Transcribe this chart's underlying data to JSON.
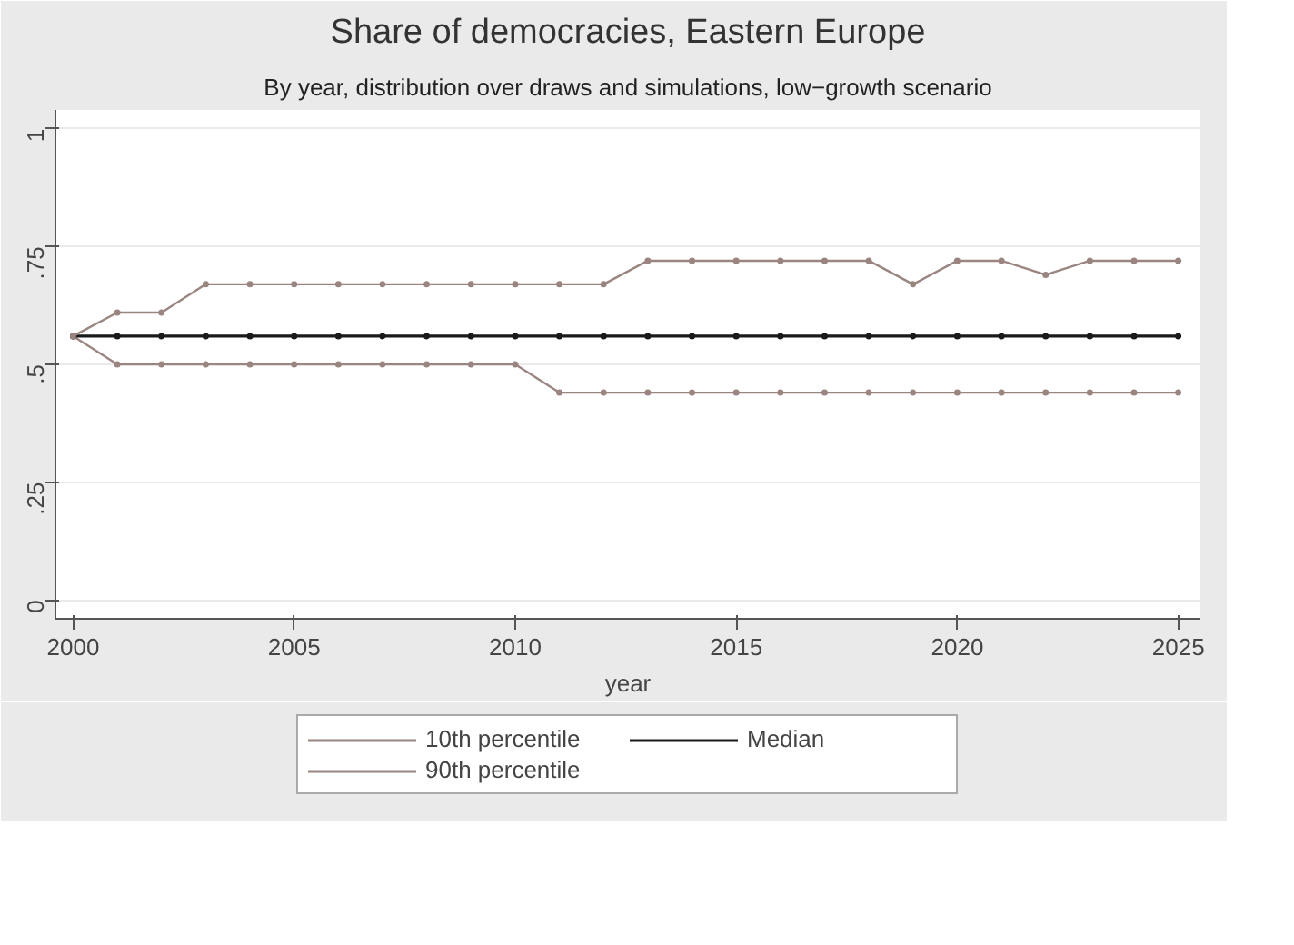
{
  "chart_data": {
    "type": "line",
    "title": "Share of democracies, Eastern Europe",
    "subtitle": "By year, distribution over draws and simulations, low−growth scenario",
    "xlabel": "year",
    "x": [
      2000,
      2001,
      2002,
      2003,
      2004,
      2005,
      2006,
      2007,
      2008,
      2009,
      2010,
      2011,
      2012,
      2013,
      2014,
      2015,
      2016,
      2017,
      2018,
      2019,
      2020,
      2021,
      2022,
      2023,
      2024,
      2025
    ],
    "series": [
      {
        "name": "10th percentile",
        "color": "#9a8580",
        "values": [
          0.56,
          0.5,
          0.5,
          0.5,
          0.5,
          0.5,
          0.5,
          0.5,
          0.5,
          0.5,
          0.5,
          0.44,
          0.44,
          0.44,
          0.44,
          0.44,
          0.44,
          0.44,
          0.44,
          0.44,
          0.44,
          0.44,
          0.44,
          0.44,
          0.44,
          0.44
        ]
      },
      {
        "name": "Median",
        "color": "#1a1a1a",
        "values": [
          0.56,
          0.56,
          0.56,
          0.56,
          0.56,
          0.56,
          0.56,
          0.56,
          0.56,
          0.56,
          0.56,
          0.56,
          0.56,
          0.56,
          0.56,
          0.56,
          0.56,
          0.56,
          0.56,
          0.56,
          0.56,
          0.56,
          0.56,
          0.56,
          0.56,
          0.56
        ]
      },
      {
        "name": "90th percentile",
        "color": "#9a8580",
        "values": [
          0.56,
          0.61,
          0.61,
          0.67,
          0.67,
          0.67,
          0.67,
          0.67,
          0.67,
          0.67,
          0.67,
          0.67,
          0.67,
          0.72,
          0.72,
          0.72,
          0.72,
          0.72,
          0.72,
          0.67,
          0.72,
          0.72,
          0.69,
          0.72,
          0.72,
          0.72
        ]
      }
    ],
    "xlim": [
      1999.6,
      2025.5
    ],
    "xticks": [
      2000,
      2005,
      2010,
      2015,
      2020,
      2025
    ],
    "ylim": [
      -0.04,
      1.04
    ],
    "yticks": [
      0,
      {
        "value": 0.25,
        "label": ".25"
      },
      {
        "value": 0.5,
        "label": ".5"
      },
      {
        "value": 0.75,
        "label": ".75"
      },
      1
    ],
    "grid": "y",
    "legend": "bottom",
    "marker": "circle",
    "line_style": "solid"
  }
}
